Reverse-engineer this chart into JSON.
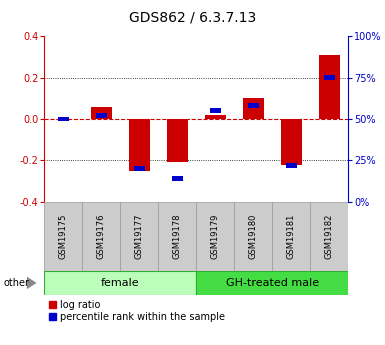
{
  "title": "GDS862 / 6.3.7.13",
  "samples": [
    "GSM19175",
    "GSM19176",
    "GSM19177",
    "GSM19178",
    "GSM19179",
    "GSM19180",
    "GSM19181",
    "GSM19182"
  ],
  "log_ratio": [
    0.0,
    0.06,
    -0.25,
    -0.21,
    0.02,
    0.1,
    -0.22,
    0.31
  ],
  "percentile_rank": [
    50,
    52,
    20,
    14,
    55,
    58,
    22,
    75
  ],
  "groups": [
    {
      "label": "female",
      "start": 0,
      "end": 4,
      "color": "#bbffbb"
    },
    {
      "label": "GH-treated male",
      "start": 4,
      "end": 8,
      "color": "#44dd44"
    }
  ],
  "ylim": [
    -0.4,
    0.4
  ],
  "yticks_left": [
    -0.4,
    -0.2,
    0.0,
    0.2,
    0.4
  ],
  "yticks_right": [
    0,
    25,
    50,
    75,
    100
  ],
  "red_color": "#cc0000",
  "blue_color": "#0000cc",
  "zero_line_color": "#cc0000",
  "grid_color": "#000000",
  "legend_red_label": "log ratio",
  "legend_blue_label": "percentile rank within the sample",
  "other_label": "other",
  "tick_fontsize": 7,
  "title_fontsize": 10,
  "sample_fontsize": 6,
  "group_fontsize": 8,
  "legend_fontsize": 7
}
